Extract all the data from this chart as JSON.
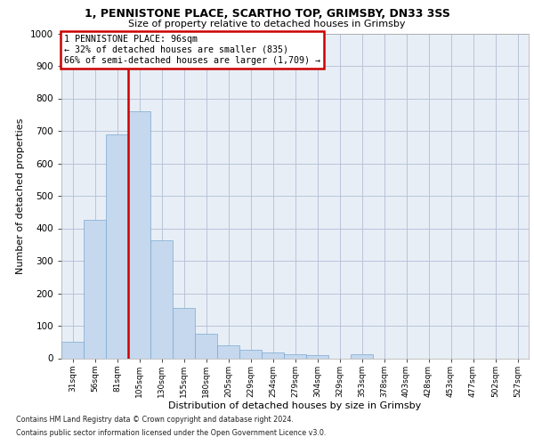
{
  "title1": "1, PENNISTONE PLACE, SCARTHO TOP, GRIMSBY, DN33 3SS",
  "title2": "Size of property relative to detached houses in Grimsby",
  "xlabel": "Distribution of detached houses by size in Grimsby",
  "ylabel": "Number of detached properties",
  "footnote1": "Contains HM Land Registry data © Crown copyright and database right 2024.",
  "footnote2": "Contains public sector information licensed under the Open Government Licence v3.0.",
  "annotation_line1": "1 PENNISTONE PLACE: 96sqm",
  "annotation_line2": "← 32% of detached houses are smaller (835)",
  "annotation_line3": "66% of semi-detached houses are larger (1,709) →",
  "bar_color": "#c5d8ee",
  "bar_edge_color": "#7aaad0",
  "vline_color": "#cc0000",
  "annotation_edge_color": "#cc0000",
  "axes_bg": "#e8eef6",
  "grid_color": "#b8c4d8",
  "categories": [
    "31sqm",
    "56sqm",
    "81sqm",
    "105sqm",
    "130sqm",
    "155sqm",
    "180sqm",
    "205sqm",
    "229sqm",
    "254sqm",
    "279sqm",
    "304sqm",
    "329sqm",
    "353sqm",
    "378sqm",
    "403sqm",
    "428sqm",
    "453sqm",
    "477sqm",
    "502sqm",
    "527sqm"
  ],
  "values": [
    52,
    425,
    690,
    760,
    362,
    155,
    75,
    40,
    27,
    18,
    13,
    9,
    0,
    11,
    0,
    0,
    0,
    0,
    0,
    0,
    0
  ],
  "ylim": [
    0,
    1000
  ],
  "yticks": [
    0,
    100,
    200,
    300,
    400,
    500,
    600,
    700,
    800,
    900,
    1000
  ],
  "vline_x_bar_index": 2.5,
  "figsize": [
    6.0,
    5.0
  ],
  "dpi": 100
}
